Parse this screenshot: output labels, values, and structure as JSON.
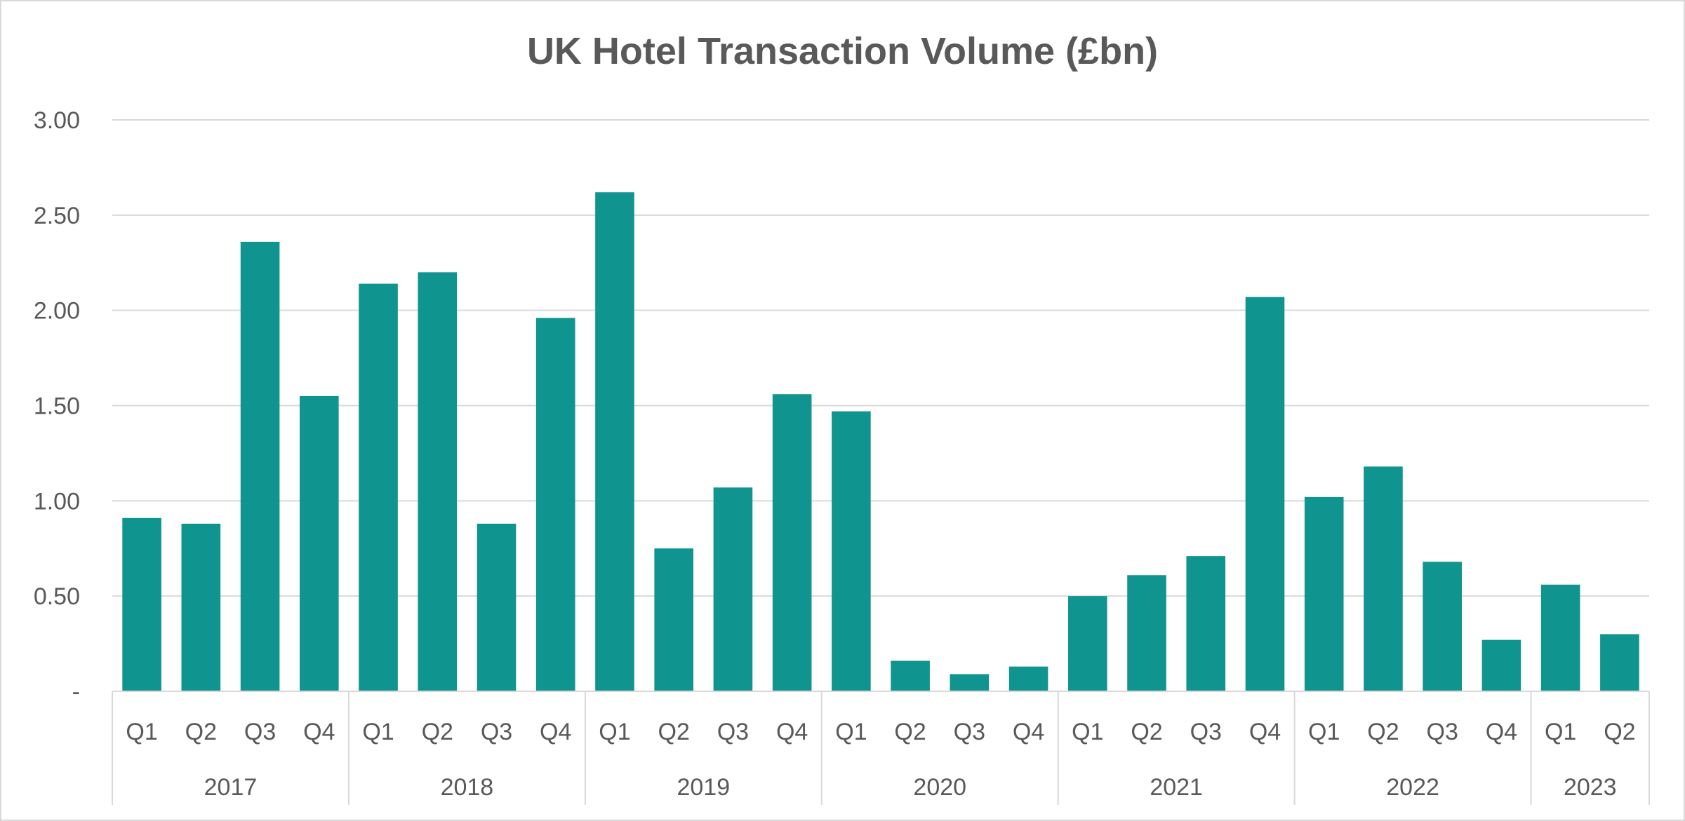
{
  "chart_data": {
    "type": "bar",
    "title": "UK Hotel Transaction Volume (£bn)",
    "xlabel": "",
    "ylabel": "",
    "ylim": [
      0,
      3.0
    ],
    "yticks": [
      "-",
      "0.50",
      "1.00",
      "1.50",
      "2.00",
      "2.50",
      "3.00"
    ],
    "ytick_values": [
      0,
      0.5,
      1.0,
      1.5,
      2.0,
      2.5,
      3.0
    ],
    "grid": true,
    "legend": "none",
    "bar_color": "#109490",
    "categories": [
      {
        "quarter": "Q1",
        "year": "2017"
      },
      {
        "quarter": "Q2",
        "year": "2017"
      },
      {
        "quarter": "Q3",
        "year": "2017"
      },
      {
        "quarter": "Q4",
        "year": "2017"
      },
      {
        "quarter": "Q1",
        "year": "2018"
      },
      {
        "quarter": "Q2",
        "year": "2018"
      },
      {
        "quarter": "Q3",
        "year": "2018"
      },
      {
        "quarter": "Q4",
        "year": "2018"
      },
      {
        "quarter": "Q1",
        "year": "2019"
      },
      {
        "quarter": "Q2",
        "year": "2019"
      },
      {
        "quarter": "Q3",
        "year": "2019"
      },
      {
        "quarter": "Q4",
        "year": "2019"
      },
      {
        "quarter": "Q1",
        "year": "2020"
      },
      {
        "quarter": "Q2",
        "year": "2020"
      },
      {
        "quarter": "Q3",
        "year": "2020"
      },
      {
        "quarter": "Q4",
        "year": "2020"
      },
      {
        "quarter": "Q1",
        "year": "2021"
      },
      {
        "quarter": "Q2",
        "year": "2021"
      },
      {
        "quarter": "Q3",
        "year": "2021"
      },
      {
        "quarter": "Q4",
        "year": "2021"
      },
      {
        "quarter": "Q1",
        "year": "2022"
      },
      {
        "quarter": "Q2",
        "year": "2022"
      },
      {
        "quarter": "Q3",
        "year": "2022"
      },
      {
        "quarter": "Q4",
        "year": "2022"
      },
      {
        "quarter": "Q1",
        "year": "2023"
      },
      {
        "quarter": "Q2",
        "year": "2023"
      }
    ],
    "years": [
      "2017",
      "2018",
      "2019",
      "2020",
      "2021",
      "2022",
      "2023"
    ],
    "values": [
      0.91,
      0.88,
      2.36,
      1.55,
      2.14,
      2.2,
      0.88,
      1.96,
      2.62,
      0.75,
      1.07,
      1.56,
      1.47,
      0.16,
      0.09,
      0.13,
      0.5,
      0.61,
      0.71,
      2.07,
      1.02,
      1.18,
      0.68,
      0.27,
      0.56,
      0.3
    ]
  }
}
